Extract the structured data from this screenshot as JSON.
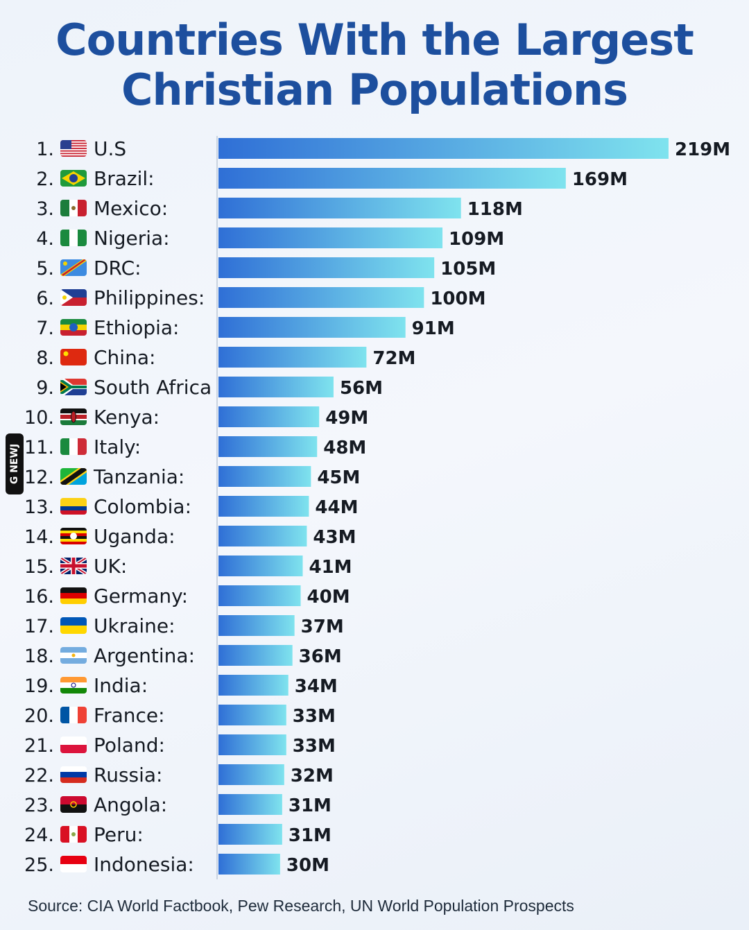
{
  "title_line1": "Countries With the Largest",
  "title_line2": "Christian Populations",
  "source": "Source: CIA World Factbook, Pew Research, UN World Population Prospects",
  "watermark": "G NEWJ",
  "colors": {
    "title": "#1d4f9e",
    "bar_start": "#2f6fd6",
    "bar_end": "#7fe3ee",
    "text": "#151a22"
  },
  "chart_data": {
    "type": "bar",
    "orientation": "horizontal",
    "title": "Countries With the Largest Christian Populations",
    "grid": false,
    "legend": "none",
    "xlim": [
      0,
      219
    ],
    "rank_labels": [
      "1.",
      "2.",
      "3.",
      "4.",
      "5.",
      "6.",
      "7.",
      "8.",
      "9.",
      "10.",
      "11.",
      "12.",
      "13.",
      "14.",
      "15.",
      "16.",
      "17.",
      "18.",
      "19.",
      "20.",
      "21.",
      "22.",
      "23.",
      "24.",
      "25."
    ],
    "categories": [
      "U.S",
      "Brazil:",
      "Mexico:",
      "Nigeria:",
      "DRC:",
      "Philippines:",
      "Ethiopia:",
      "China:",
      "South Africa",
      "Kenya:",
      "Italy:",
      "Tanzania:",
      "Colombia:",
      "Uganda:",
      "UK:",
      "Germany:",
      "Ukraine:",
      "Argentina:",
      "India:",
      "France:",
      "Poland:",
      "Russia:",
      "Angola:",
      "Peru:",
      "Indonesia:"
    ],
    "flags": [
      "us-flag-icon",
      "brazil-flag-icon",
      "mexico-flag-icon",
      "nigeria-flag-icon",
      "drc-flag-icon",
      "philippines-flag-icon",
      "ethiopia-flag-icon",
      "china-flag-icon",
      "south-africa-flag-icon",
      "kenya-flag-icon",
      "italy-flag-icon",
      "tanzania-flag-icon",
      "colombia-flag-icon",
      "uganda-flag-icon",
      "uk-flag-icon",
      "germany-flag-icon",
      "ukraine-flag-icon",
      "argentina-flag-icon",
      "india-flag-icon",
      "france-flag-icon",
      "poland-flag-icon",
      "russia-flag-icon",
      "angola-flag-icon",
      "peru-flag-icon",
      "indonesia-flag-icon"
    ],
    "values": [
      219,
      169,
      118,
      109,
      105,
      100,
      91,
      72,
      56,
      49,
      48,
      45,
      44,
      43,
      41,
      40,
      37,
      36,
      34,
      33,
      33,
      32,
      31,
      31,
      30
    ],
    "data_labels": [
      "219M",
      "169M",
      "118M",
      "109M",
      "105M",
      "100M",
      "91M",
      "72M",
      "56M",
      "49M",
      "48M",
      "45M",
      "44M",
      "43M",
      "41M",
      "40M",
      "37M",
      "36M",
      "34M",
      "33M",
      "33M",
      "32M",
      "31M",
      "31M",
      "30M"
    ]
  }
}
